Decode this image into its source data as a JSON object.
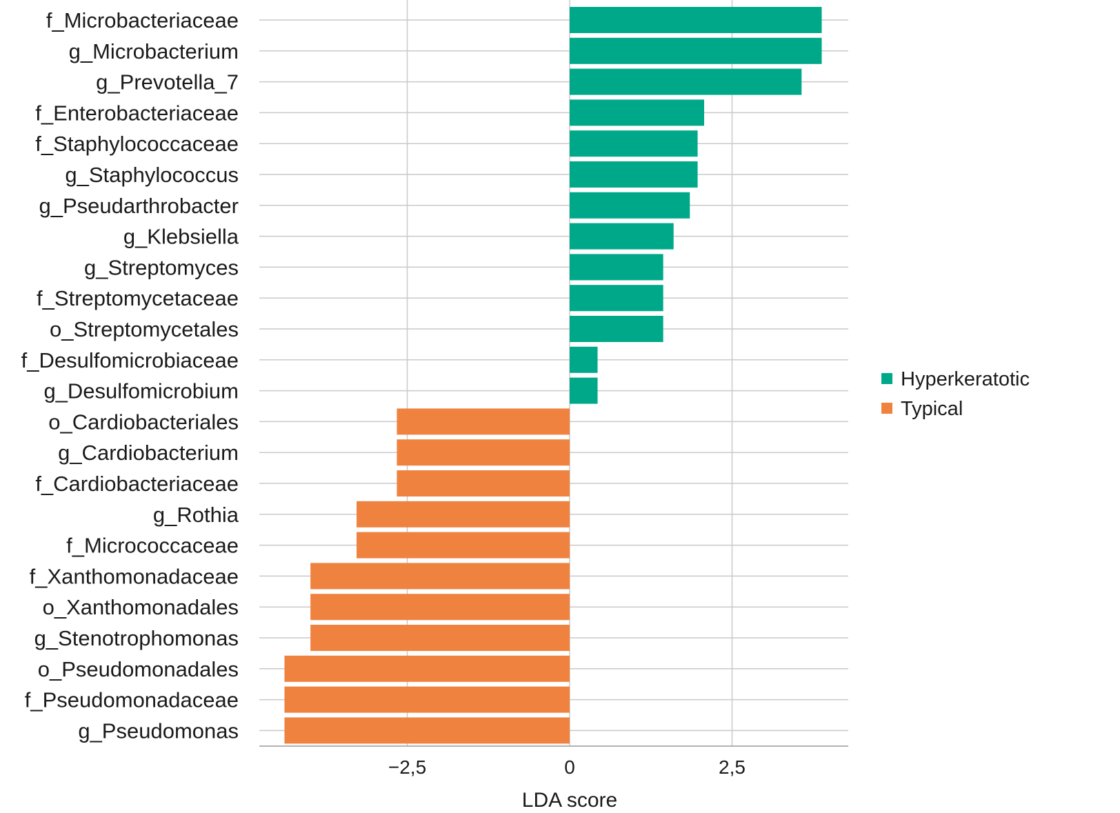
{
  "chart_data": {
    "type": "bar",
    "orientation": "horizontal",
    "xlabel": "LDA score",
    "xlim": [
      -4.8,
      4.3
    ],
    "xticks": [
      -2.5,
      0,
      2.5
    ],
    "xtick_labels": [
      "−2,5",
      "0",
      "2,5"
    ],
    "grid": true,
    "legend_position": "right",
    "series": [
      {
        "name": "Hyperkeratotic",
        "color": "#00A88A"
      },
      {
        "name": "Typical",
        "color": "#F08240"
      }
    ],
    "categories": [
      "f_Microbacteriaceae",
      "g_Microbacterium",
      "g_Prevotella_7",
      "f_Enterobacteriaceae",
      "f_Staphylococcaceae",
      "g_Staphylococcus",
      "g_Pseudarthrobacter",
      "g_Klebsiella",
      "g_Streptomyces",
      "f_Streptomycetaceae",
      "o_Streptomycetales",
      "f_Desulfomicrobiaceae",
      "g_Desulfomicrobium",
      "o_Cardiobacteriales",
      "g_Cardiobacterium",
      "f_Cardiobacteriaceae",
      "g_Rothia",
      "f_Micrococcaceae",
      "f_Xanthomonadaceae",
      "o_Xanthomonadales",
      "g_Stenotrophomonas",
      "o_Pseudomonadales",
      "f_Pseudomonadaceae",
      "g_Pseudomonas"
    ],
    "values": [
      3.88,
      3.88,
      3.57,
      2.07,
      1.97,
      1.97,
      1.85,
      1.6,
      1.44,
      1.44,
      1.44,
      0.43,
      0.43,
      -2.66,
      -2.66,
      -2.66,
      -3.28,
      -3.28,
      -3.99,
      -3.99,
      -3.99,
      -4.39,
      -4.39,
      -4.39
    ],
    "groups": [
      "Hyperkeratotic",
      "Hyperkeratotic",
      "Hyperkeratotic",
      "Hyperkeratotic",
      "Hyperkeratotic",
      "Hyperkeratotic",
      "Hyperkeratotic",
      "Hyperkeratotic",
      "Hyperkeratotic",
      "Hyperkeratotic",
      "Hyperkeratotic",
      "Hyperkeratotic",
      "Hyperkeratotic",
      "Typical",
      "Typical",
      "Typical",
      "Typical",
      "Typical",
      "Typical",
      "Typical",
      "Typical",
      "Typical",
      "Typical",
      "Typical"
    ]
  }
}
